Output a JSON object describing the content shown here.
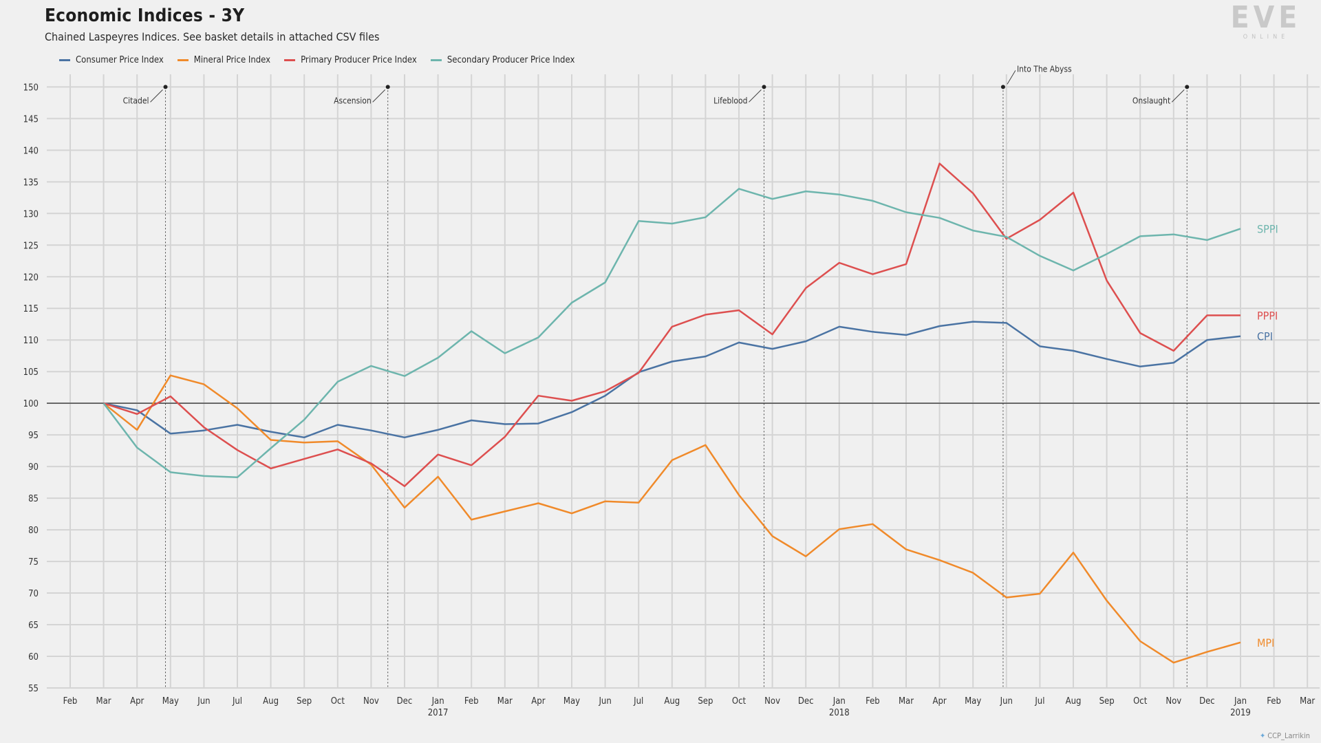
{
  "chart_data": {
    "type": "line",
    "title": "Economic Indices - 3Y",
    "subtitle": "Chained Laspeyres Indices. See basket details in attached CSV files",
    "months": [
      "Feb",
      "Mar",
      "Apr",
      "May",
      "Jun",
      "Jul",
      "Aug",
      "Sep",
      "Oct",
      "Nov",
      "Dec",
      "Jan",
      "Feb",
      "Mar",
      "Apr",
      "May",
      "Jun",
      "Jul",
      "Aug",
      "Sep",
      "Oct",
      "Nov",
      "Dec",
      "Jan",
      "Feb",
      "Mar",
      "Apr",
      "May",
      "Jun",
      "Jul",
      "Aug",
      "Sep",
      "Oct",
      "Nov",
      "Dec",
      "Jan",
      "Feb",
      "Mar"
    ],
    "years": [
      {
        "label": "2017",
        "month_index": 11
      },
      {
        "label": "2018",
        "month_index": 23
      },
      {
        "label": "2019",
        "month_index": 35
      }
    ],
    "ylim": [
      55,
      152
    ],
    "yticks": [
      55,
      60,
      65,
      70,
      75,
      80,
      85,
      90,
      95,
      100,
      105,
      110,
      115,
      120,
      125,
      130,
      135,
      140,
      145,
      150
    ],
    "baseline": 100,
    "series": [
      {
        "name": "Consumer Price Index",
        "short": "CPI",
        "color": "#4a73a3",
        "values": [
          null,
          100,
          98.9,
          95.2,
          95.7,
          96.6,
          95.5,
          94.6,
          96.6,
          95.7,
          94.6,
          95.8,
          97.3,
          96.7,
          96.8,
          98.6,
          101.2,
          104.9,
          106.6,
          107.4,
          109.6,
          108.6,
          109.8,
          112.1,
          111.3,
          110.8,
          112.2,
          112.9,
          112.7,
          109.0,
          108.3,
          107.0,
          105.8,
          106.4,
          110.0,
          110.6,
          null,
          null
        ]
      },
      {
        "name": "Mineral Price Index",
        "short": "MPI",
        "color": "#f08a2a",
        "values": [
          null,
          100,
          95.8,
          104.4,
          103.0,
          99.2,
          94.2,
          93.8,
          94.0,
          90.3,
          83.5,
          88.4,
          81.6,
          82.9,
          84.2,
          82.6,
          84.5,
          84.3,
          91.0,
          93.4,
          85.5,
          79.0,
          75.8,
          80.1,
          80.9,
          76.9,
          75.2,
          73.2,
          69.3,
          69.9,
          76.4,
          68.8,
          62.4,
          59.0,
          60.7,
          62.2,
          null,
          null
        ]
      },
      {
        "name": "Primary Producer Price Index",
        "short": "PPPI",
        "color": "#dd4f4f",
        "values": [
          null,
          100,
          98.3,
          101.1,
          96.2,
          92.6,
          89.7,
          91.2,
          92.7,
          90.5,
          86.9,
          91.9,
          90.2,
          94.7,
          101.2,
          100.4,
          101.9,
          104.8,
          112.1,
          114.0,
          114.7,
          110.9,
          118.2,
          122.2,
          120.4,
          122.0,
          137.9,
          133.2,
          126.0,
          129.0,
          133.3,
          119.4,
          111.1,
          108.3,
          113.9,
          113.9,
          null,
          null
        ]
      },
      {
        "name": "Secondary Producer Price Index",
        "short": "SPPI",
        "color": "#6db5ad",
        "values": [
          null,
          100,
          93.0,
          89.1,
          88.5,
          88.3,
          92.9,
          97.4,
          103.4,
          105.9,
          104.3,
          107.2,
          111.4,
          107.9,
          110.4,
          115.9,
          119.1,
          128.8,
          128.4,
          129.4,
          133.9,
          132.3,
          133.5,
          133.0,
          132.0,
          130.2,
          129.3,
          127.3,
          126.3,
          123.3,
          121.0,
          123.6,
          126.4,
          126.7,
          125.8,
          127.6,
          null,
          null
        ]
      }
    ],
    "events": [
      {
        "label": "Citadel",
        "month_pos": 2.85
      },
      {
        "label": "Ascension",
        "month_pos": 9.5
      },
      {
        "label": "Lifeblood",
        "month_pos": 20.75
      },
      {
        "label": "Into The Abyss",
        "month_pos": 27.9
      },
      {
        "label": "Onslaught",
        "month_pos": 33.4
      }
    ]
  },
  "branding": {
    "logo_text": "EVE",
    "logo_subtext": "ONLINE",
    "credit": "CCP_Larrikin"
  }
}
